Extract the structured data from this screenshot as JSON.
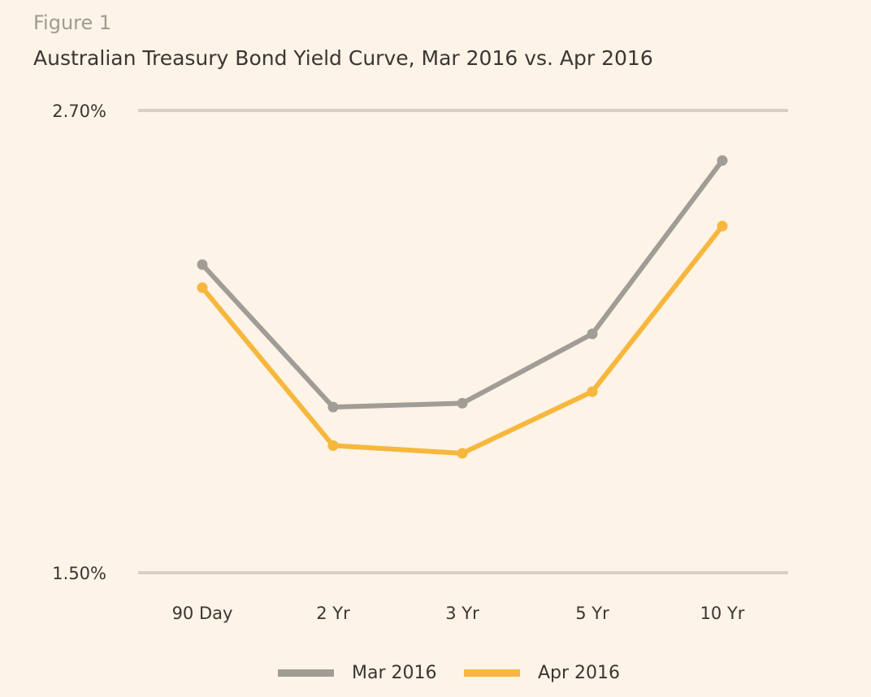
{
  "figure_label": "Figure 1",
  "colors": {
    "background": "#fdf3e7",
    "grid": "#d9cfc2",
    "mar": "#a19c96",
    "apr": "#f6b73c",
    "text": "#3a3632"
  },
  "chart_data": {
    "type": "line",
    "title": "Australian Treasury Bond Yield Curve, Mar 2016 vs. Apr 2016",
    "categories": [
      "90 Day",
      "2 Yr",
      "3 Yr",
      "5 Yr",
      "10 Yr"
    ],
    "ylim": [
      1.5,
      2.7
    ],
    "yticks": [
      "2.70%",
      "1.50%"
    ],
    "grid": true,
    "legend_position": "bottom-center",
    "series": [
      {
        "name": "Mar 2016",
        "color": "#a19c96",
        "values": [
          2.3,
          1.93,
          1.94,
          2.12,
          2.57
        ]
      },
      {
        "name": "Apr 2016",
        "color": "#f6b73c",
        "values": [
          2.24,
          1.83,
          1.81,
          1.97,
          2.4
        ]
      }
    ]
  }
}
